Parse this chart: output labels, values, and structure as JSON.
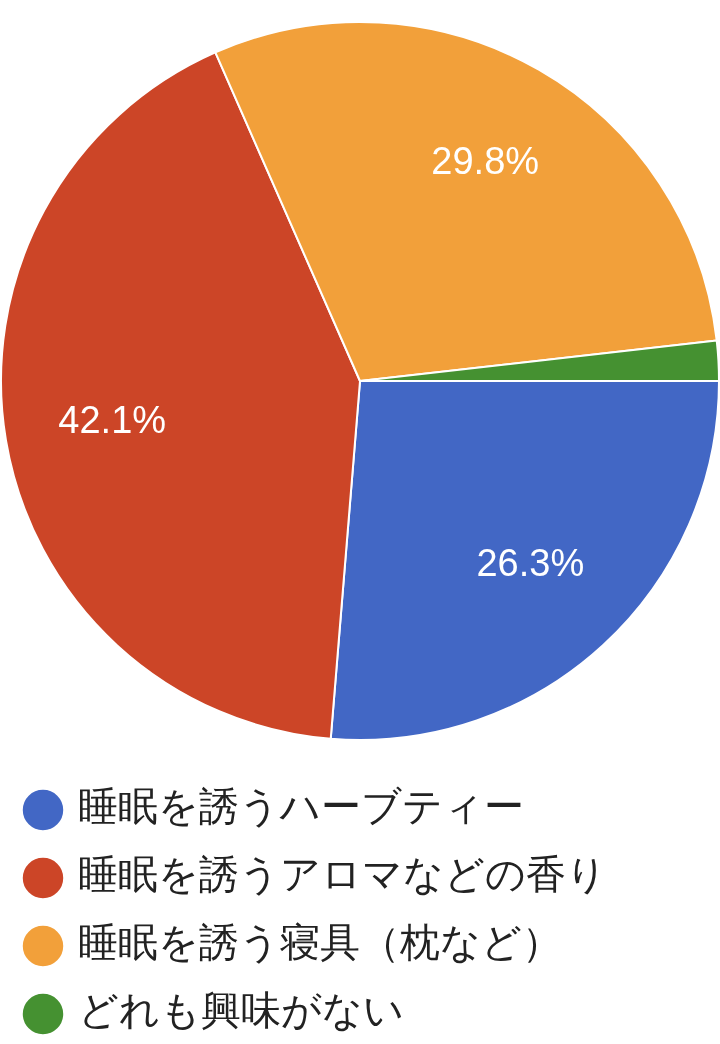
{
  "chart_data": {
    "type": "pie",
    "categories": [
      "睡眠を誘うハーブティー",
      "睡眠を誘うアロマなどの香り",
      "睡眠を誘う寝具（枕など）",
      "どれも興味がない"
    ],
    "values": [
      26.3,
      42.1,
      29.8,
      1.8
    ],
    "colors": [
      "#4267c5",
      "#cc4527",
      "#f2a03a",
      "#459131"
    ],
    "value_labels": [
      "26.3%",
      "42.1%",
      "29.8%",
      null
    ],
    "legend": "bottom left"
  }
}
